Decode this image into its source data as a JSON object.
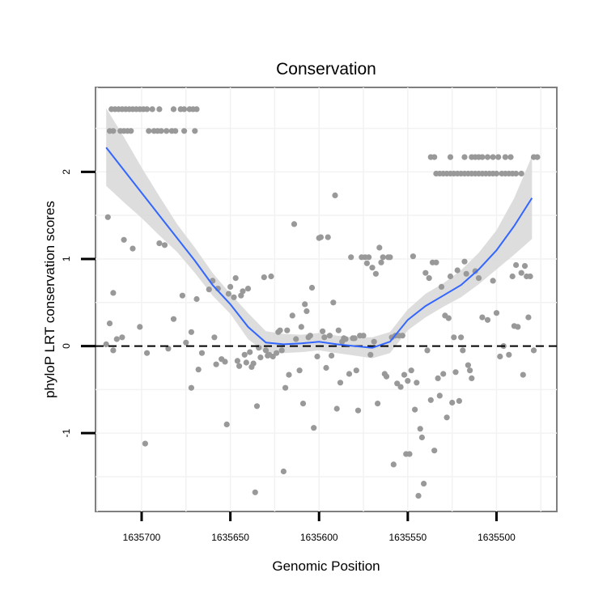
{
  "chart_data": {
    "type": "scatter",
    "title": "Conservation",
    "xlabel": "Genomic Position",
    "ylabel": "phyloP LRT conservation scores",
    "xlim": [
      1635726,
      1635466
    ],
    "ylim": [
      -1.9,
      2.97
    ],
    "x_reversed": true,
    "xticks": [
      1635700,
      1635650,
      1635600,
      1635550,
      1635500
    ],
    "xtick_labels": [
      "1635700",
      "1635650",
      "1635600",
      "1635550",
      "1635500"
    ],
    "yticks": [
      -1,
      0,
      1,
      2
    ],
    "ytick_labels": [
      "-1",
      "0",
      "1",
      "2"
    ],
    "reference_line": {
      "y": 0,
      "style": "dashed"
    },
    "point_color": "#999999",
    "smooth_color": "#3366ff",
    "band_color": "#d9d9d9",
    "points": [
      [
        1635717,
        2.72
      ],
      [
        1635715,
        2.72
      ],
      [
        1635713,
        2.72
      ],
      [
        1635711,
        2.72
      ],
      [
        1635709,
        2.72
      ],
      [
        1635707,
        2.72
      ],
      [
        1635705,
        2.72
      ],
      [
        1635703,
        2.72
      ],
      [
        1635701,
        2.72
      ],
      [
        1635699,
        2.72
      ],
      [
        1635697,
        2.72
      ],
      [
        1635694,
        2.72
      ],
      [
        1635690,
        2.72
      ],
      [
        1635682,
        2.72
      ],
      [
        1635678,
        2.72
      ],
      [
        1635676,
        2.72
      ],
      [
        1635673,
        2.72
      ],
      [
        1635671,
        2.72
      ],
      [
        1635669,
        2.72
      ],
      [
        1635718,
        2.47
      ],
      [
        1635716,
        2.47
      ],
      [
        1635712,
        2.47
      ],
      [
        1635710,
        2.47
      ],
      [
        1635708,
        2.47
      ],
      [
        1635706,
        2.47
      ],
      [
        1635696,
        2.47
      ],
      [
        1635693,
        2.47
      ],
      [
        1635691,
        2.47
      ],
      [
        1635689,
        2.47
      ],
      [
        1635686,
        2.47
      ],
      [
        1635683,
        2.47
      ],
      [
        1635681,
        2.47
      ],
      [
        1635676,
        2.47
      ],
      [
        1635670,
        2.47
      ],
      [
        1635719,
        1.48
      ],
      [
        1635710,
        1.22
      ],
      [
        1635705,
        1.12
      ],
      [
        1635690,
        1.18
      ],
      [
        1635687,
        1.16
      ],
      [
        1635716,
        0.61
      ],
      [
        1635682,
        0.31
      ],
      [
        1635677,
        0.58
      ],
      [
        1635669,
        0.54
      ],
      [
        1635718,
        0.26
      ],
      [
        1635711,
        0.1
      ],
      [
        1635714,
        0.08
      ],
      [
        1635701,
        0.22
      ],
      [
        1635672,
        0.16
      ],
      [
        1635720,
        0.02
      ],
      [
        1635716,
        -0.05
      ],
      [
        1635697,
        -0.08
      ],
      [
        1635685,
        -0.03
      ],
      [
        1635675,
        0.04
      ],
      [
        1635698,
        -1.12
      ],
      [
        1635672,
        -0.48
      ],
      [
        1635668,
        -0.27
      ],
      [
        1635666,
        -0.08
      ],
      [
        1635662,
        0.65
      ],
      [
        1635660,
        0.75
      ],
      [
        1635659,
        0.1
      ],
      [
        1635658,
        -0.21
      ],
      [
        1635657,
        0.66
      ],
      [
        1635655,
        -0.15
      ],
      [
        1635653,
        -0.18
      ],
      [
        1635652,
        -0.9
      ],
      [
        1635651,
        0.6
      ],
      [
        1635650,
        0.68
      ],
      [
        1635648,
        0.56
      ],
      [
        1635647,
        0.78
      ],
      [
        1635646,
        -0.17
      ],
      [
        1635645,
        -0.23
      ],
      [
        1635644,
        0.58
      ],
      [
        1635643,
        0.63
      ],
      [
        1635642,
        -0.1
      ],
      [
        1635641,
        -0.19
      ],
      [
        1635640,
        0.66
      ],
      [
        1635639,
        -0.07
      ],
      [
        1635638,
        -0.24
      ],
      [
        1635637,
        -0.2
      ],
      [
        1635636,
        -1.68
      ],
      [
        1635635,
        -0.69
      ],
      [
        1635634,
        -0.02
      ],
      [
        1635633,
        -0.13
      ],
      [
        1635631,
        0.79
      ],
      [
        1635630,
        -0.05
      ],
      [
        1635629,
        -0.11
      ],
      [
        1635628,
        -0.1
      ],
      [
        1635627,
        0.8
      ],
      [
        1635626,
        -0.12
      ],
      [
        1635624,
        -0.08
      ],
      [
        1635623,
        0.16
      ],
      [
        1635622,
        0.18
      ],
      [
        1635621,
        -0.05
      ],
      [
        1635620,
        -1.44
      ],
      [
        1635619,
        -0.48
      ],
      [
        1635618,
        0.18
      ],
      [
        1635617,
        -0.33
      ],
      [
        1635615,
        0.35
      ],
      [
        1635614,
        1.4
      ],
      [
        1635613,
        0.08
      ],
      [
        1635611,
        -0.28
      ],
      [
        1635610,
        0.22
      ],
      [
        1635609,
        -0.66
      ],
      [
        1635608,
        0.48
      ],
      [
        1635607,
        0.4
      ],
      [
        1635606,
        0.1
      ],
      [
        1635605,
        0.12
      ],
      [
        1635604,
        0.67
      ],
      [
        1635603,
        -0.94
      ],
      [
        1635601,
        -0.12
      ],
      [
        1635600,
        1.24
      ],
      [
        1635599,
        1.25
      ],
      [
        1635598,
        0.17
      ],
      [
        1635597,
        0.1
      ],
      [
        1635596,
        -0.25
      ],
      [
        1635595,
        1.25
      ],
      [
        1635594,
        0.12
      ],
      [
        1635593,
        -0.11
      ],
      [
        1635592,
        0.5
      ],
      [
        1635591,
        1.73
      ],
      [
        1635590,
        -0.72
      ],
      [
        1635589,
        0.18
      ],
      [
        1635588,
        -0.42
      ],
      [
        1635587,
        0.05
      ],
      [
        1635586,
        0.09
      ],
      [
        1635585,
        0.08
      ],
      [
        1635583,
        -0.32
      ],
      [
        1635582,
        1.02
      ],
      [
        1635581,
        0.09
      ],
      [
        1635580,
        0.09
      ],
      [
        1635579,
        -0.28
      ],
      [
        1635578,
        -0.74
      ],
      [
        1635577,
        0.12
      ],
      [
        1635576,
        1.02
      ],
      [
        1635575,
        0.12
      ],
      [
        1635574,
        1.02
      ],
      [
        1635573,
        0.95
      ],
      [
        1635572,
        1.02
      ],
      [
        1635571,
        -0.1
      ],
      [
        1635570,
        0.9
      ],
      [
        1635569,
        0.05
      ],
      [
        1635568,
        0.83
      ],
      [
        1635567,
        -0.66
      ],
      [
        1635566,
        1.13
      ],
      [
        1635565,
        0.96
      ],
      [
        1635564,
        1.02
      ],
      [
        1635563,
        -0.32
      ],
      [
        1635562,
        -0.35
      ],
      [
        1635561,
        1.02
      ],
      [
        1635560,
        1.02
      ],
      [
        1635559,
        0.1
      ],
      [
        1635558,
        -1.36
      ],
      [
        1635557,
        0.12
      ],
      [
        1635556,
        -0.43
      ],
      [
        1635555,
        0.12
      ],
      [
        1635554,
        -0.47
      ],
      [
        1635553,
        0.12
      ],
      [
        1635552,
        -0.33
      ],
      [
        1635551,
        -1.24
      ],
      [
        1635550,
        -0.4
      ],
      [
        1635549,
        -1.24
      ],
      [
        1635548,
        -0.28
      ],
      [
        1635547,
        1.03
      ],
      [
        1635546,
        -0.73
      ],
      [
        1635545,
        -0.42
      ],
      [
        1635544,
        -1.72
      ],
      [
        1635543,
        -0.95
      ],
      [
        1635542,
        -1.05
      ],
      [
        1635541,
        -1.58
      ],
      [
        1635540,
        0.84
      ],
      [
        1635539,
        -0.05
      ],
      [
        1635538,
        0.78
      ],
      [
        1635537,
        -0.62
      ],
      [
        1635536,
        0.96
      ],
      [
        1635535,
        -1.2
      ],
      [
        1635534,
        0.96
      ],
      [
        1635533,
        -0.37
      ],
      [
        1635532,
        -0.57
      ],
      [
        1635531,
        0.68
      ],
      [
        1635530,
        -0.32
      ],
      [
        1635529,
        0.35
      ],
      [
        1635528,
        -0.82
      ],
      [
        1635527,
        0.32
      ],
      [
        1635526,
        0.8
      ],
      [
        1635525,
        -0.65
      ],
      [
        1635524,
        0.1
      ],
      [
        1635523,
        -0.3
      ],
      [
        1635522,
        0.87
      ],
      [
        1635521,
        -0.63
      ],
      [
        1635520,
        0.1
      ],
      [
        1635519,
        -0.05
      ],
      [
        1635518,
        0.97
      ],
      [
        1635517,
        0.83
      ],
      [
        1635516,
        -0.22
      ],
      [
        1635515,
        -0.28
      ],
      [
        1635514,
        -0.37
      ],
      [
        1635512,
        0.86
      ],
      [
        1635510,
        0.78
      ],
      [
        1635508,
        0.33
      ],
      [
        1635505,
        0.3
      ],
      [
        1635502,
        0.75
      ],
      [
        1635500,
        0.38
      ],
      [
        1635498,
        -0.12
      ],
      [
        1635496,
        0.0
      ],
      [
        1635493,
        -0.1
      ],
      [
        1635491,
        0.8
      ],
      [
        1635490,
        0.23
      ],
      [
        1635489,
        0.93
      ],
      [
        1635488,
        0.22
      ],
      [
        1635486,
        0.84
      ],
      [
        1635485,
        -0.33
      ],
      [
        1635484,
        0.92
      ],
      [
        1635483,
        0.8
      ],
      [
        1635482,
        0.33
      ],
      [
        1635481,
        0.8
      ],
      [
        1635479,
        -0.05
      ],
      [
        1635537,
        2.17
      ],
      [
        1635535,
        2.17
      ],
      [
        1635526,
        2.17
      ],
      [
        1635518,
        2.17
      ],
      [
        1635514,
        2.17
      ],
      [
        1635512,
        2.17
      ],
      [
        1635510,
        2.17
      ],
      [
        1635508,
        2.17
      ],
      [
        1635505,
        2.17
      ],
      [
        1635502,
        2.17
      ],
      [
        1635499,
        2.17
      ],
      [
        1635495,
        2.17
      ],
      [
        1635492,
        2.17
      ],
      [
        1635479,
        2.17
      ],
      [
        1635477,
        2.17
      ],
      [
        1635534,
        1.98
      ],
      [
        1635532,
        1.98
      ],
      [
        1635530,
        1.98
      ],
      [
        1635528,
        1.98
      ],
      [
        1635526,
        1.98
      ],
      [
        1635524,
        1.98
      ],
      [
        1635522,
        1.98
      ],
      [
        1635520,
        1.98
      ],
      [
        1635518,
        1.98
      ],
      [
        1635516,
        1.98
      ],
      [
        1635514,
        1.98
      ],
      [
        1635512,
        1.98
      ],
      [
        1635510,
        1.98
      ],
      [
        1635508,
        1.98
      ],
      [
        1635506,
        1.98
      ],
      [
        1635504,
        1.98
      ],
      [
        1635502,
        1.98
      ],
      [
        1635500,
        1.98
      ],
      [
        1635497,
        1.98
      ],
      [
        1635495,
        1.98
      ],
      [
        1635493,
        1.98
      ],
      [
        1635491,
        1.98
      ],
      [
        1635489,
        1.98
      ],
      [
        1635486,
        1.98
      ]
    ],
    "smooth_line": {
      "x": [
        1635720,
        1635710,
        1635700,
        1635690,
        1635680,
        1635670,
        1635660,
        1635650,
        1635640,
        1635630,
        1635620,
        1635610,
        1635600,
        1635590,
        1635580,
        1635570,
        1635560,
        1635550,
        1635540,
        1635530,
        1635520,
        1635510,
        1635500,
        1635490,
        1635480
      ],
      "y": [
        2.28,
        2.02,
        1.76,
        1.5,
        1.24,
        0.98,
        0.7,
        0.48,
        0.22,
        0.04,
        0.02,
        0.03,
        0.05,
        0.02,
        0.0,
        -0.02,
        0.05,
        0.3,
        0.46,
        0.58,
        0.7,
        0.88,
        1.1,
        1.38,
        1.7
      ],
      "upper": [
        2.73,
        2.4,
        2.05,
        1.72,
        1.4,
        1.13,
        0.84,
        0.6,
        0.38,
        0.17,
        0.14,
        0.13,
        0.15,
        0.12,
        0.1,
        0.1,
        0.16,
        0.42,
        0.6,
        0.72,
        0.87,
        1.07,
        1.33,
        1.7,
        2.18
      ],
      "lower": [
        1.84,
        1.65,
        1.47,
        1.27,
        1.08,
        0.84,
        0.58,
        0.37,
        0.08,
        -0.08,
        -0.08,
        -0.07,
        -0.05,
        -0.08,
        -0.11,
        -0.14,
        -0.08,
        0.18,
        0.33,
        0.45,
        0.56,
        0.71,
        0.88,
        1.05,
        1.23
      ]
    }
  }
}
